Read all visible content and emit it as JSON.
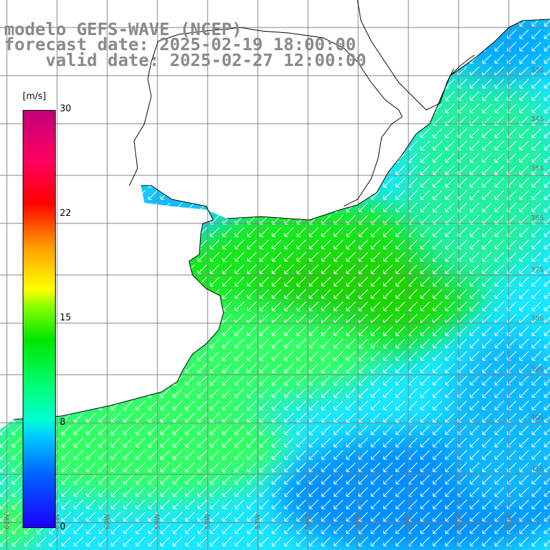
{
  "title": {
    "model": "modelo GEFS-WAVE (NCEP)",
    "forecast": "forecast date: 2025-02-19 18:00:00",
    "valid": "    valid date: 2025-02-27 12:00:00"
  },
  "colorbar": {
    "unit": "[m/s]",
    "ticks": [
      "30",
      "22",
      "15",
      "8",
      "0"
    ],
    "tick_values": [
      30,
      22,
      15,
      8,
      0
    ]
  },
  "grid": {
    "lat_labels": [
      "33S",
      "34S",
      "35S",
      "36S",
      "37S",
      "38S",
      "39S",
      "40S",
      "41S"
    ],
    "lon_labels": [
      "62W",
      "61W",
      "60W",
      "59W",
      "58W",
      "57W",
      "56W",
      "55W",
      "54W",
      "53W",
      "52W"
    ]
  },
  "colors": {
    "land": "#ffffff",
    "coast": "#000000",
    "grid": "#808080",
    "header": "#8a8a8a",
    "arrow": "#ffffff"
  },
  "wind_arrow_direction": "toward southwest"
}
